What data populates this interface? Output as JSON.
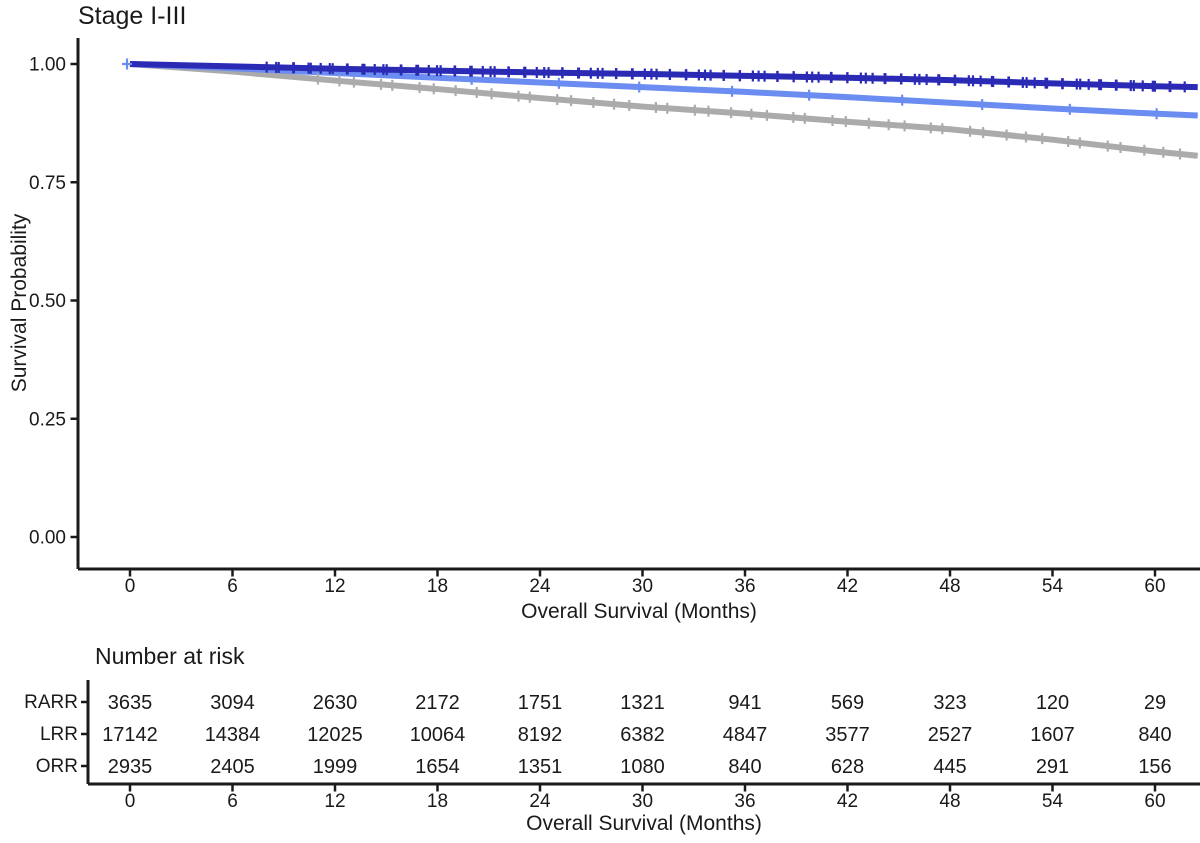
{
  "title": "Stage I-III",
  "chart_data": {
    "type": "line",
    "subtype": "kaplan-meier-survival",
    "title": "Stage I-III",
    "xlabel": "Overall Survival (Months)",
    "ylabel": "Survival Probability",
    "xlim": [
      0,
      62.5
    ],
    "ylim": [
      0.0,
      1.0
    ],
    "grid": false,
    "legend_position": "none",
    "x_ticks": [
      0,
      6,
      12,
      18,
      24,
      30,
      36,
      42,
      48,
      54,
      60
    ],
    "y_ticks": [
      {
        "label": "1.00",
        "value": 1.0
      },
      {
        "label": "0.75",
        "value": 0.75
      },
      {
        "label": "0.50",
        "value": 0.5
      },
      {
        "label": "0.25",
        "value": 0.25
      },
      {
        "label": "0.00",
        "value": 0.0
      }
    ],
    "x": [
      0,
      6,
      12,
      18,
      24,
      30,
      36,
      42,
      48,
      54,
      60,
      62.5
    ],
    "series": [
      {
        "name": "RARR",
        "color": "#2a2ab4",
        "values": [
          1.0,
          0.995,
          0.99,
          0.986,
          0.982,
          0.979,
          0.975,
          0.971,
          0.966,
          0.959,
          0.953,
          0.951
        ],
        "censor": {
          "from": 8,
          "to": 62,
          "step": 0.45,
          "style": "plus"
        }
      },
      {
        "name": "LRR",
        "color": "#6b8cf0",
        "values": [
          1.0,
          0.991,
          0.981,
          0.971,
          0.961,
          0.951,
          0.941,
          0.93,
          0.918,
          0.906,
          0.895,
          0.891
        ],
        "censor": {
          "from": 20,
          "to": 62,
          "step": 5,
          "style": "tick",
          "plus_at_start": true
        }
      },
      {
        "name": "ORR",
        "color": "#ababab",
        "values": [
          1.0,
          0.984,
          0.965,
          0.947,
          0.928,
          0.91,
          0.895,
          0.878,
          0.862,
          0.84,
          0.815,
          0.806
        ],
        "censor": {
          "from": 11,
          "to": 62,
          "step": 1.15,
          "style": "tick"
        }
      }
    ]
  },
  "risk_table": {
    "title": "Number at risk",
    "xlabel": "Overall Survival (Months)",
    "x_ticks": [
      0,
      6,
      12,
      18,
      24,
      30,
      36,
      42,
      48,
      54,
      60
    ],
    "rows": [
      {
        "label": "RARR",
        "color": "#2a2ab4",
        "values": [
          3635,
          3094,
          2630,
          2172,
          1751,
          1321,
          941,
          569,
          323,
          120,
          29
        ]
      },
      {
        "label": "LRR",
        "color": "#6b8cf0",
        "values": [
          17142,
          14384,
          12025,
          10064,
          8192,
          6382,
          4847,
          3577,
          2527,
          1607,
          840
        ]
      },
      {
        "label": "ORR",
        "color": "#ababab",
        "values": [
          2935,
          2405,
          1999,
          1654,
          1351,
          1080,
          840,
          628,
          445,
          291,
          156
        ]
      }
    ]
  }
}
